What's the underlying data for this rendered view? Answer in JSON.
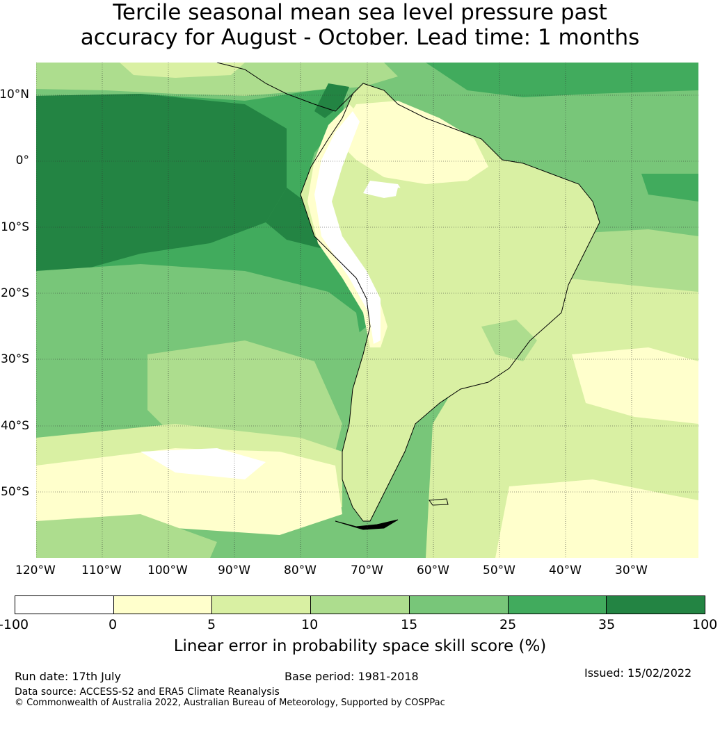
{
  "title": {
    "line1": "Tercile seasonal mean sea level pressure past",
    "line2": "accuracy for August - October. Lead time: 1 months"
  },
  "map": {
    "lat_labels": [
      "10°N",
      "0°",
      "10°S",
      "20°S",
      "30°S",
      "40°S",
      "50°S"
    ],
    "lon_labels": [
      "120°W",
      "110°W",
      "100°W",
      "90°W",
      "80°W",
      "70°W",
      "60°W",
      "50°W",
      "40°W",
      "30°W"
    ],
    "ocean_color": "#41ab5d",
    "land_color": "#d9f0a3"
  },
  "colorbar": {
    "ticks": [
      "-100",
      "0",
      "5",
      "10",
      "15",
      "25",
      "35",
      "100"
    ],
    "colors": [
      "#ffffff",
      "#ffffcc",
      "#d9f0a3",
      "#addd8e",
      "#78c679",
      "#41ab5d",
      "#238443"
    ],
    "label": "Linear error in probability space skill score (%)"
  },
  "footer": {
    "run_date": "Run date: 17th July",
    "base_period": "Base period: 1981-2018",
    "issued": "Issued: 15/02/2022",
    "data_source": "Data source: ACCESS-S2 and ERA5 Climate Reanalysis",
    "copyright": "© Commonwealth of Australia 2022, Australian Bureau of Meteorology, Supported by COSPPac"
  }
}
